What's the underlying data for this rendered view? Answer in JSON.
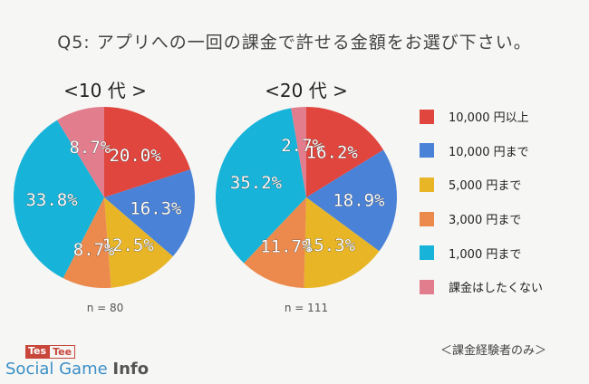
{
  "title": "Q5: アプリへの一回の課金で許せる金額をお選び下さい。",
  "colors": [
    "#e0463d",
    "#4a82d8",
    "#e8b526",
    "#ec8a4e",
    "#17b3d8",
    "#e27d8d"
  ],
  "legend": [
    "10,000 円以上",
    "10,000 円まで",
    "5,000 円まで",
    "3,000 円まで",
    "1,000 円まで",
    "課金はしたくない"
  ],
  "chart_data": [
    {
      "type": "pie",
      "title": "<10 代 >",
      "n_label": "n = 80",
      "categories": [
        "10,000 円以上",
        "10,000 円まで",
        "5,000 円まで",
        "3,000 円まで",
        "1,000 円まで",
        "課金はしたくない"
      ],
      "values": [
        20.0,
        16.3,
        12.5,
        8.7,
        33.8,
        8.7
      ],
      "labels": [
        "20.0%",
        "16.3%",
        "12.5%",
        "8.7%",
        "33.8%",
        "8.7%"
      ]
    },
    {
      "type": "pie",
      "title": "<20 代 >",
      "n_label": "n = 111",
      "categories": [
        "10,000 円以上",
        "10,000 円まで",
        "5,000 円まで",
        "3,000 円まで",
        "1,000 円まで",
        "課金はしたくない"
      ],
      "values": [
        16.2,
        18.9,
        15.3,
        11.7,
        35.2,
        2.7
      ],
      "labels": [
        "16.2%",
        "18.9%",
        "15.3%",
        "11.7%",
        "35.2%",
        "2.7%"
      ]
    }
  ],
  "footnote": "＜課金経験者のみ＞",
  "logo": {
    "top_left": "Tes",
    "top_right": "Tee",
    "main": "Social Game ",
    "main_bold": "Info"
  }
}
